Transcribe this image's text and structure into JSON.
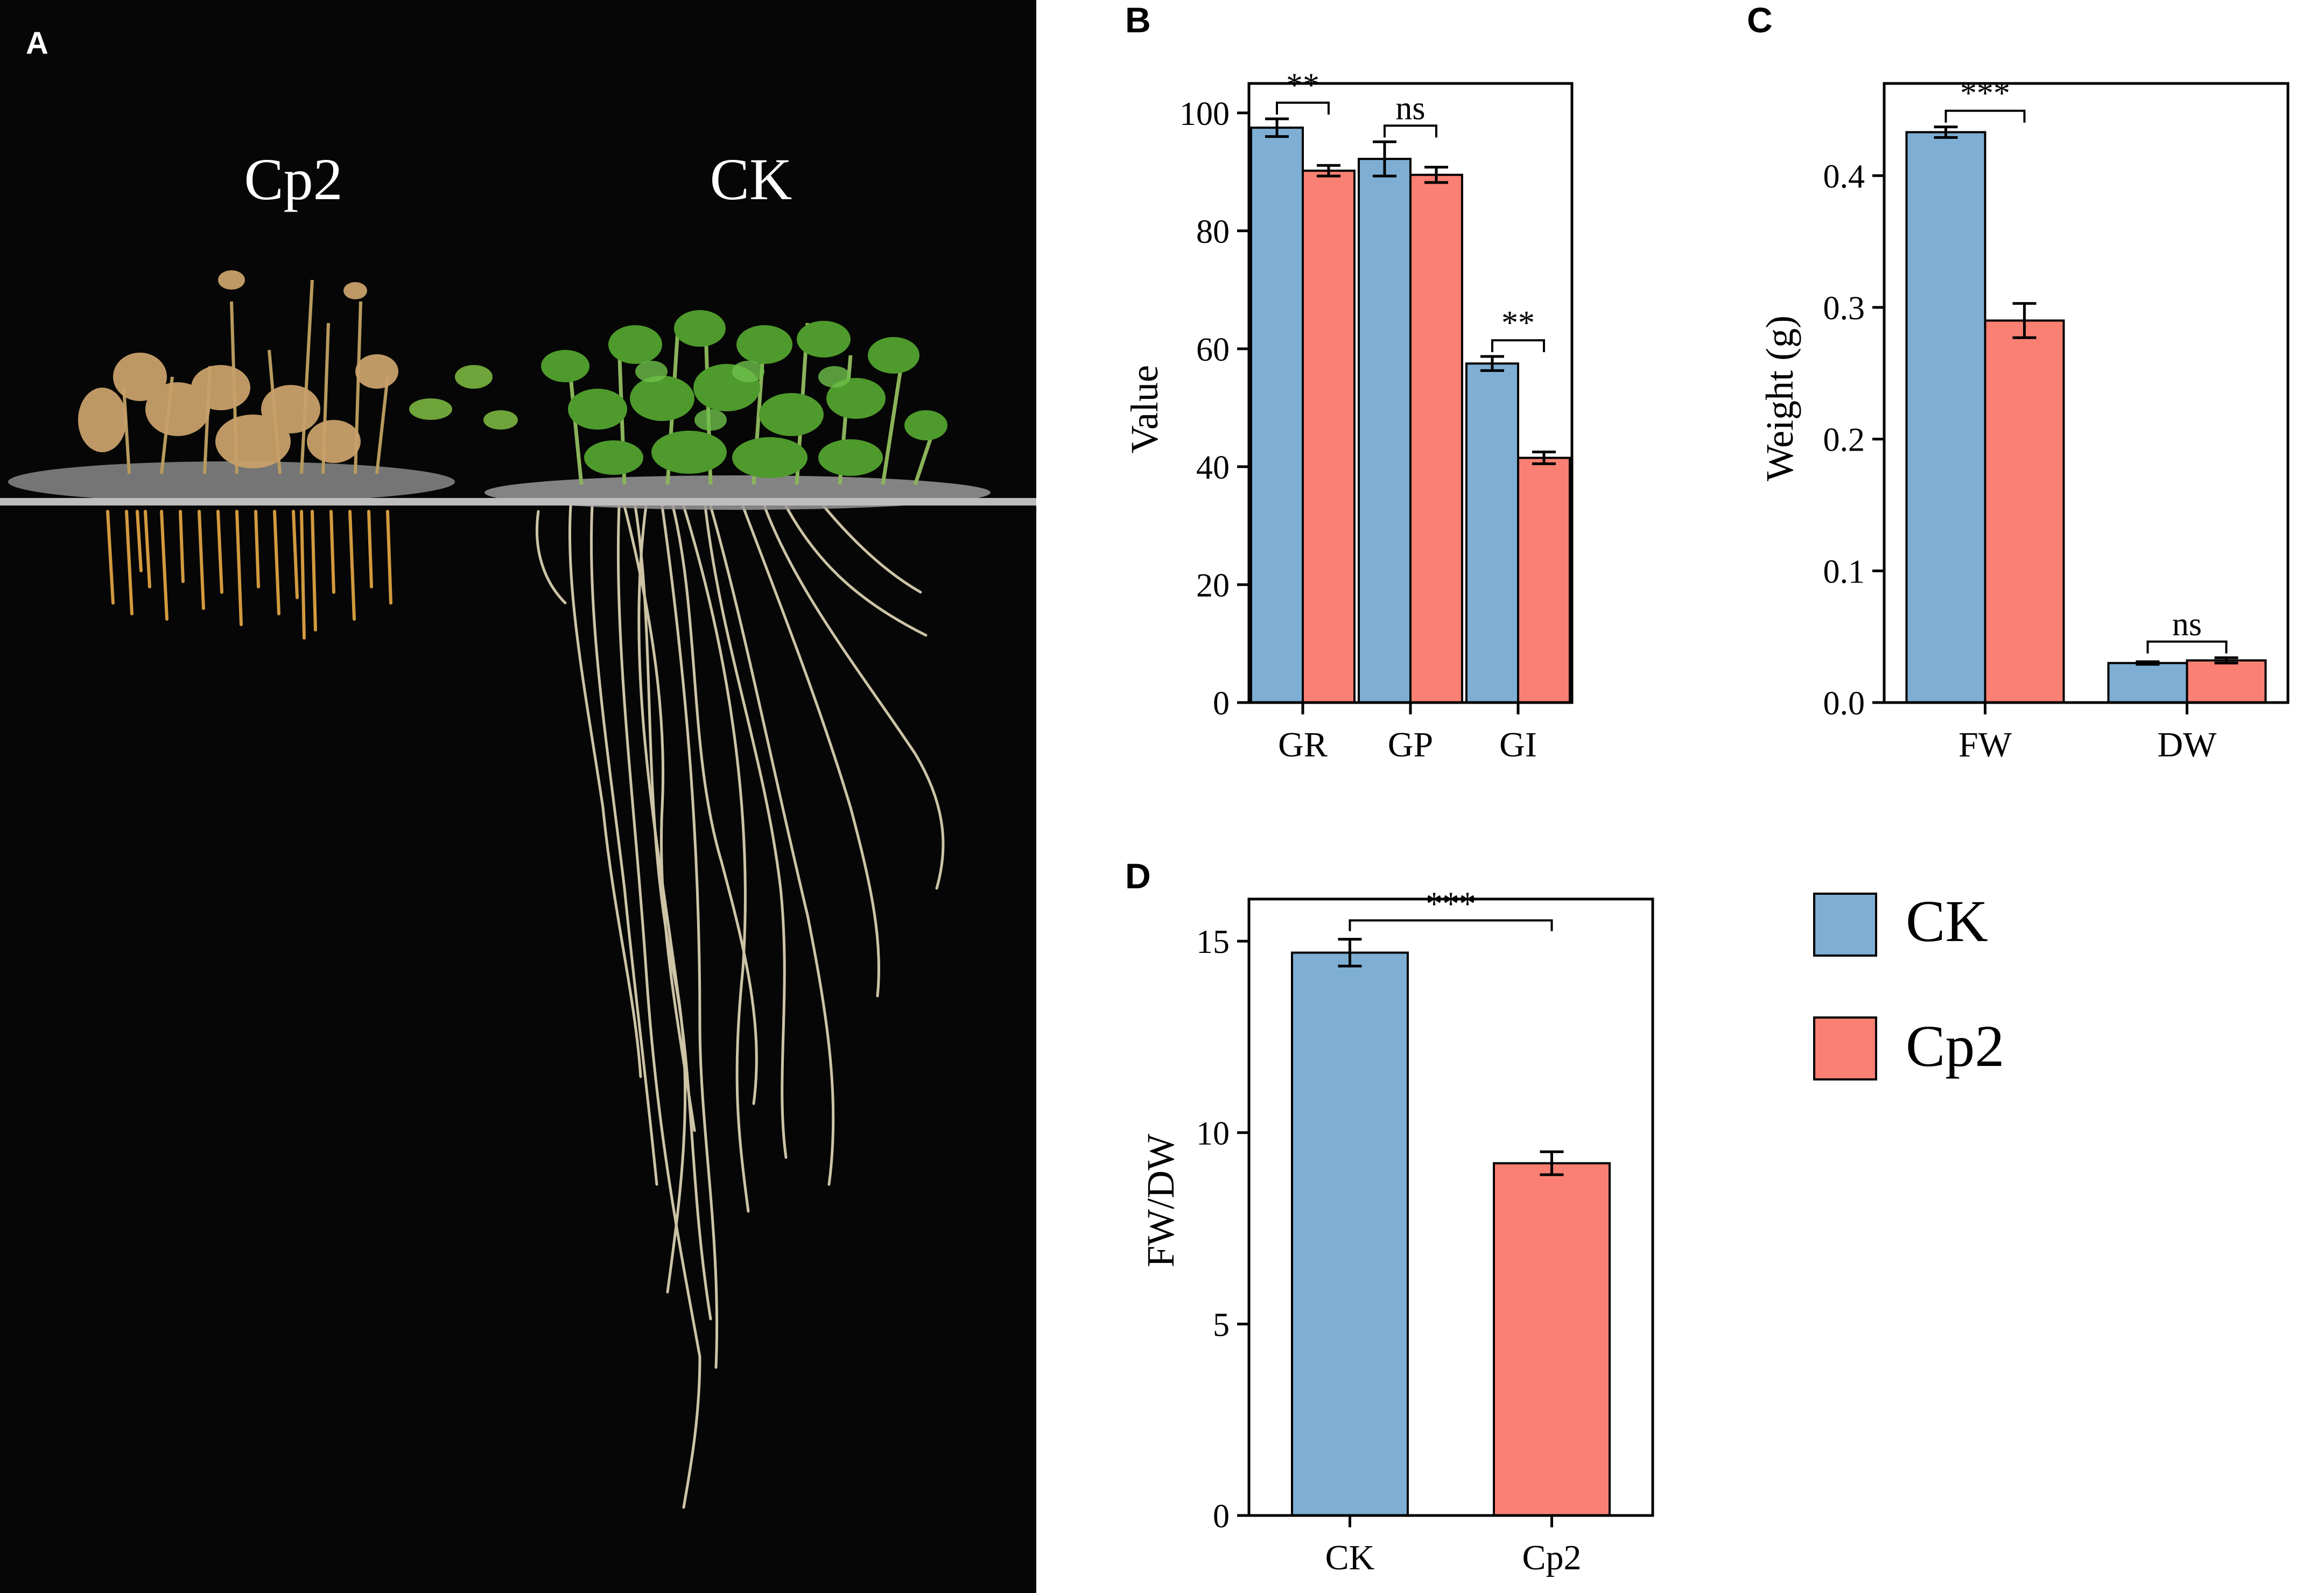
{
  "colors": {
    "ck": "#7eaed3",
    "cp2": "#f98073",
    "photo_bg": "#060606",
    "root_light": "#e3d9b8",
    "root_orange": "#d29a3e",
    "leaf_green": "#4e9a2c",
    "leaf_dry": "#c8a06a"
  },
  "panel_a": {
    "letter": "A",
    "label_left": "Cp2",
    "label_right": "CK"
  },
  "panel_b": {
    "letter": "B"
  },
  "panel_c": {
    "letter": "C"
  },
  "panel_d": {
    "letter": "D"
  },
  "legend": [
    {
      "name": "CK",
      "color": "#7eaed3"
    },
    {
      "name": "Cp2",
      "color": "#f98073"
    }
  ],
  "chart_data": [
    {
      "id": "B",
      "type": "bar",
      "categories": [
        "GR",
        "GP",
        "GI"
      ],
      "series": [
        {
          "name": "CK",
          "values": [
            97.5,
            92.2,
            57.5
          ],
          "errors": [
            1.5,
            2.9,
            1.2
          ]
        },
        {
          "name": "Cp2",
          "values": [
            90.2,
            89.5,
            41.5
          ],
          "errors": [
            0.9,
            1.3,
            1.0
          ]
        }
      ],
      "ylabel": "Value",
      "xlabel": "",
      "ylim": [
        0,
        105
      ],
      "yticks": [
        "0",
        "20",
        "40",
        "60",
        "80",
        "100"
      ],
      "significance": [
        "**",
        "ns",
        "**"
      ],
      "grid": false
    },
    {
      "id": "C",
      "type": "bar",
      "categories": [
        "FW",
        "DW"
      ],
      "series": [
        {
          "name": "CK",
          "values": [
            0.433,
            0.03
          ],
          "errors": [
            0.004,
            0.001
          ]
        },
        {
          "name": "Cp2",
          "values": [
            0.29,
            0.032
          ],
          "errors": [
            0.013,
            0.002
          ]
        }
      ],
      "ylabel": "Weight (g)",
      "xlabel": "",
      "ylim": [
        0,
        0.47
      ],
      "yticks": [
        "0.0",
        "0.1",
        "0.2",
        "0.3",
        "0.4"
      ],
      "significance": [
        "***",
        "ns"
      ],
      "grid": false
    },
    {
      "id": "D",
      "type": "bar",
      "categories": [
        "CK",
        "Cp2"
      ],
      "values": [
        14.7,
        9.2
      ],
      "errors": [
        0.35,
        0.3
      ],
      "ylabel": "FW/DW",
      "xlabel": "",
      "ylim": [
        0,
        16.1
      ],
      "yticks": [
        "0",
        "5",
        "10",
        "15"
      ],
      "significance": [
        "***"
      ],
      "grid": false
    }
  ]
}
